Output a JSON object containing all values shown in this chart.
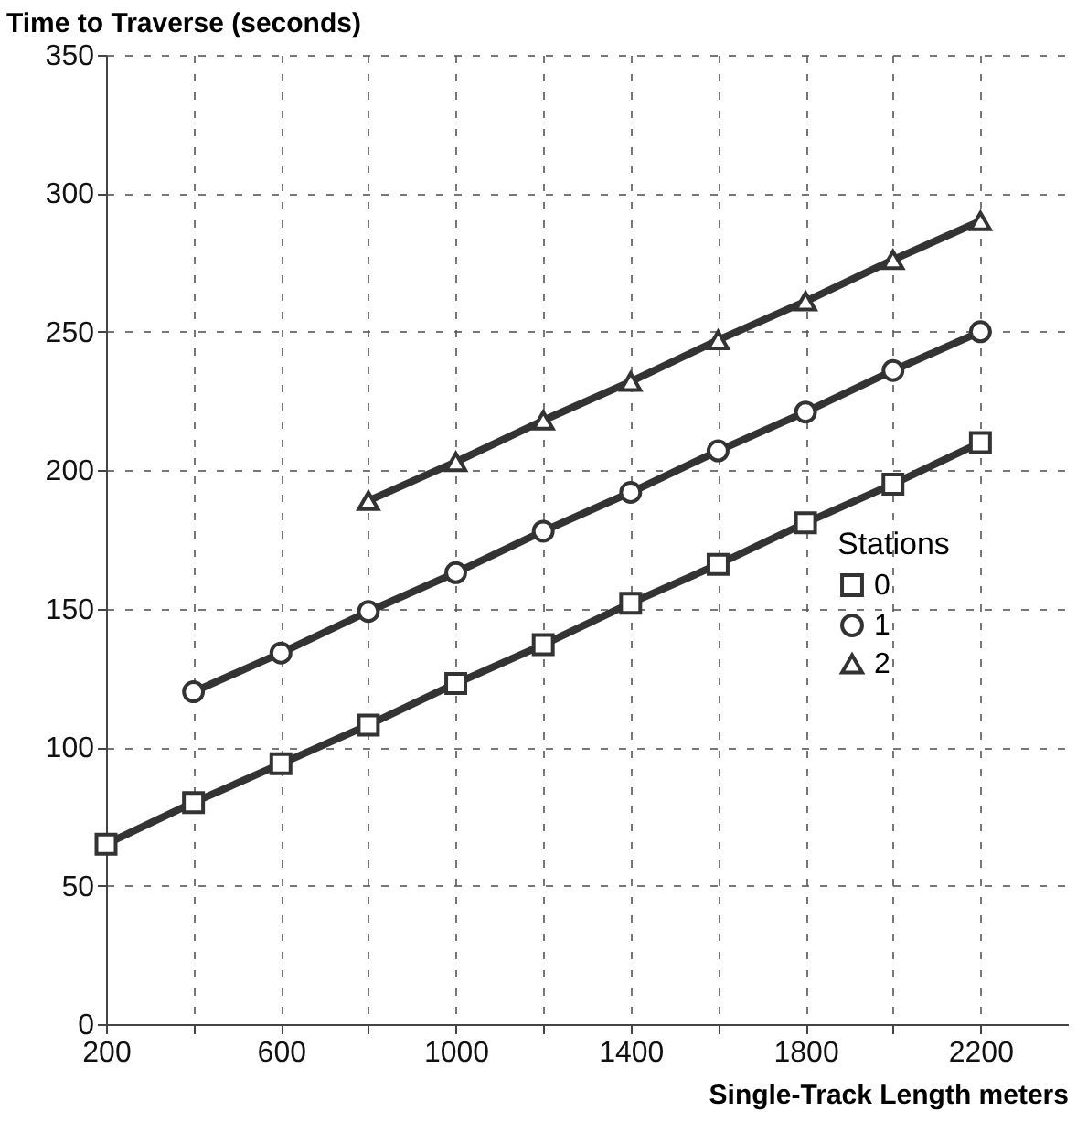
{
  "chart_data": {
    "type": "line",
    "ylabel": "Time to Traverse (seconds)",
    "xlabel": "Single-Track Length meters",
    "legend_title": "Stations",
    "series": [
      {
        "name": "0",
        "color": "#333333",
        "marker": "square",
        "x": [
          200,
          400,
          600,
          800,
          1000,
          1200,
          1400,
          1600,
          1800,
          2000,
          2200
        ],
        "values": [
          65,
          80,
          94,
          108,
          123,
          137,
          152,
          166,
          181,
          195,
          210
        ]
      },
      {
        "name": "1",
        "color": "#333333",
        "marker": "circle",
        "x": [
          400,
          600,
          800,
          1000,
          1200,
          1400,
          1600,
          1800,
          2000,
          2200
        ],
        "values": [
          120,
          134,
          149,
          163,
          178,
          192,
          207,
          221,
          236,
          250
        ]
      },
      {
        "name": "2",
        "color": "#333333",
        "marker": "triangle",
        "x": [
          800,
          1000,
          1200,
          1400,
          1600,
          1800,
          2000,
          2200
        ],
        "values": [
          189,
          203,
          218,
          232,
          247,
          261,
          276,
          290
        ]
      }
    ],
    "xlim": [
      200,
      2400
    ],
    "xticks": [
      200,
      {
        "value": 400,
        "label": null
      },
      600,
      {
        "value": 800,
        "label": null
      },
      1000,
      {
        "value": 1200,
        "label": null
      },
      1400,
      {
        "value": 1600,
        "label": null
      },
      1800,
      {
        "value": 2000,
        "label": null
      },
      2200
    ],
    "ylim": [
      0,
      350
    ],
    "yticks": [
      0,
      50,
      100,
      150,
      200,
      250,
      300,
      350
    ],
    "grid": true,
    "legend": "right",
    "line_style": "solid"
  }
}
